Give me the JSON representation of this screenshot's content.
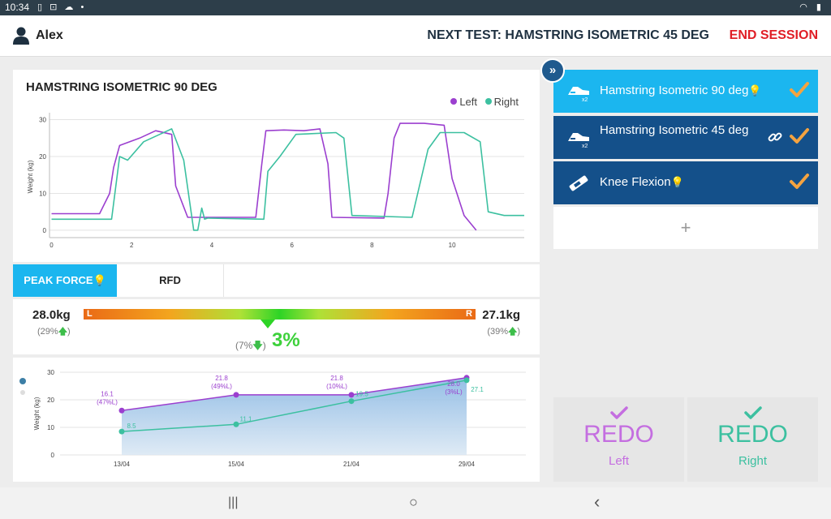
{
  "status_bar": {
    "time": "10:34"
  },
  "header": {
    "user_name": "Alex",
    "next_test": "NEXT TEST: HAMSTRING ISOMETRIC 45 DEG",
    "end_session": "END SESSION"
  },
  "main_chart": {
    "title": "HAMSTRING ISOMETRIC 90 DEG",
    "legend": {
      "left": "Left",
      "right": "Right"
    },
    "colors": {
      "left": "#9b3fcf",
      "right": "#3cc0a0"
    },
    "chart_data": {
      "type": "line",
      "ylabel": "Weight (kg)",
      "xlabel": "",
      "xlim": [
        -0.05,
        11.8
      ],
      "ylim": [
        -2,
        31
      ],
      "x_ticks": [
        0,
        2,
        4,
        6,
        8,
        10
      ],
      "y_ticks": [
        0,
        10,
        20,
        30
      ],
      "grid": true,
      "legend_position": "top-right",
      "series": [
        {
          "name": "Left",
          "x": [
            0,
            1.2,
            1.45,
            1.55,
            1.7,
            2.2,
            2.6,
            3.0,
            3.1,
            3.4,
            5.1,
            5.25,
            5.35,
            5.8,
            6.3,
            6.7,
            6.9,
            7.0,
            8.3,
            8.4,
            8.55,
            8.7,
            9.3,
            9.8,
            10.0,
            10.3,
            10.6
          ],
          "y": [
            4.5,
            4.5,
            10,
            17,
            23,
            25,
            27,
            26,
            12,
            3.5,
            3.5,
            18,
            27,
            27.2,
            27,
            27.5,
            18,
            3.5,
            3.3,
            10,
            25,
            29,
            29,
            28.5,
            14,
            4,
            0
          ]
        },
        {
          "name": "Right",
          "x": [
            0,
            1.5,
            1.7,
            1.9,
            2.3,
            2.9,
            3.0,
            3.3,
            3.55,
            3.65,
            3.75,
            3.82,
            3.9,
            5.3,
            5.4,
            5.7,
            6.1,
            7.1,
            7.3,
            7.5,
            9.0,
            9.4,
            9.7,
            10.3,
            10.7,
            10.9,
            11.3,
            11.8
          ],
          "y": [
            3.0,
            3.0,
            20,
            19,
            24,
            27,
            27.5,
            19,
            0,
            0,
            6,
            3,
            3.3,
            3,
            16,
            20,
            26,
            26.5,
            25,
            4,
            3.5,
            22,
            26.5,
            26.5,
            24,
            5,
            4,
            4
          ]
        }
      ]
    }
  },
  "tabs": {
    "peak_force": "PEAK FORCE",
    "rfd": "RFD"
  },
  "force": {
    "left_value": "28.0kg",
    "left_pct": "(29%",
    "right_value": "27.1kg",
    "right_pct": "(39%",
    "bar_L": "L",
    "bar_R": "R",
    "diff_small": "(7%",
    "diff_big": "3%",
    "balance_position": 0.47
  },
  "history": {
    "chart_data": {
      "type": "line",
      "ylabel": "Weight (kg)",
      "xlabel": "",
      "categories": [
        "13/04",
        "15/04",
        "21/04",
        "29/04"
      ],
      "ylim": [
        0,
        30
      ],
      "y_ticks": [
        0,
        10,
        20,
        30
      ],
      "grid": true,
      "series": [
        {
          "name": "Left",
          "values": [
            16.1,
            21.8,
            21.8,
            28.0
          ],
          "labels": [
            "16.1\n(47%L)",
            "21.8\n(49%L)",
            "21.8\n(10%L)",
            "28.0\n(3%L)"
          ]
        },
        {
          "name": "Right",
          "values": [
            8.5,
            11.1,
            19.5,
            27.1
          ],
          "labels": [
            "8.5",
            "11.1",
            "19.5",
            "27.1"
          ]
        }
      ]
    }
  },
  "tests": [
    {
      "name": "Hamstring Isometric 90 deg",
      "bulb": true,
      "link": false,
      "active": true,
      "icon": "hamstring-device-icon"
    },
    {
      "name": "Hamstring Isometric 45 deg",
      "bulb": false,
      "link": true,
      "active": false,
      "icon": "hamstring-device-icon"
    },
    {
      "name": "Knee Flexion",
      "bulb": true,
      "link": false,
      "active": false,
      "icon": "dynamometer-icon"
    }
  ],
  "add_test": "+",
  "redo": {
    "left": {
      "word": "REDO",
      "side": "Left",
      "color": "#c46ee0"
    },
    "right": {
      "word": "REDO",
      "side": "Right",
      "color": "#3cc0a0"
    }
  },
  "nav": {
    "recents": "|||",
    "home": "○",
    "back": "‹"
  }
}
